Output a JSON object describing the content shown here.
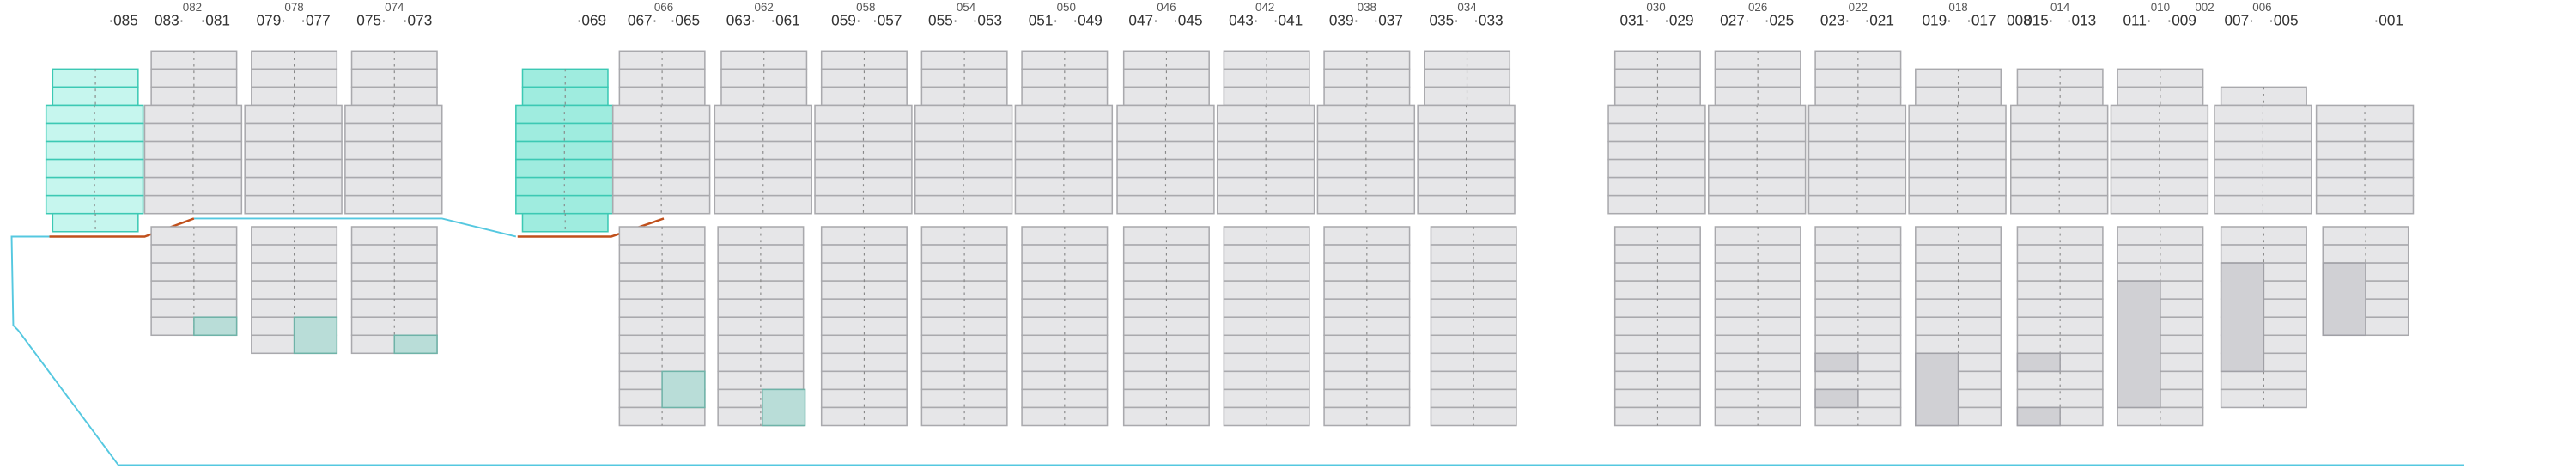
{
  "bay_labels": [
    "·085",
    "083·",
    "·081",
    "079·",
    "·077",
    "075·",
    "·073",
    "·069",
    "067·",
    "·065",
    "063·",
    "·061",
    "059·",
    "·057",
    "055·",
    "·053",
    "051·",
    "·049",
    "047·",
    "·045",
    "043·",
    "·041",
    "039·",
    "·037",
    "035·",
    "·033",
    "031·",
    "·029",
    "027·",
    "·025",
    "023·",
    "·021",
    "019·",
    "·017",
    "008",
    "015·",
    "·013",
    "011·",
    "·009",
    "007·",
    "·005",
    "·001"
  ],
  "sub_labels": [
    "082",
    "078",
    "074",
    "066",
    "062",
    "058",
    "054",
    "050",
    "046",
    "042",
    "038",
    "034",
    "030",
    "026",
    "022",
    "018",
    "014",
    "010",
    "002",
    "006"
  ]
}
